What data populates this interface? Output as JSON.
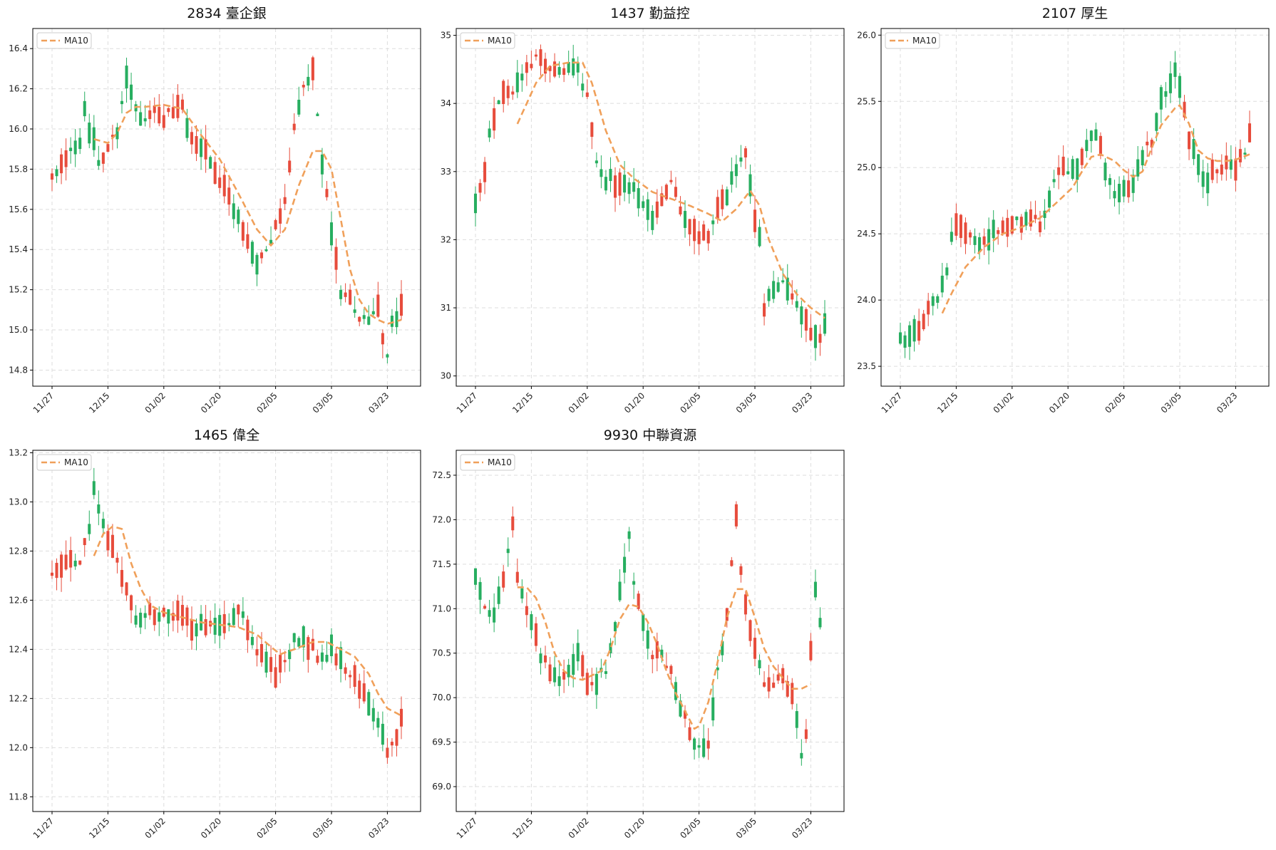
{
  "colors": {
    "up": "#e74c3c",
    "down": "#27ae60",
    "ma": "#f0a05a",
    "grid": "#dddddd",
    "frame": "#000000"
  },
  "x_tick_labels": [
    "11/27",
    "12/15",
    "01/02",
    "01/20",
    "02/05",
    "03/05",
    "03/23"
  ],
  "x_tick_index": [
    0,
    12,
    24,
    36,
    48,
    60,
    72
  ],
  "chart_data": [
    {
      "type": "candlestick",
      "title": "2834 臺企銀",
      "legend": {
        "label": "MA10",
        "position": "top-left"
      },
      "ylim": [
        14.72,
        16.5
      ],
      "yticks": [
        14.8,
        15.0,
        15.2,
        15.4,
        15.6,
        15.8,
        16.0,
        16.2,
        16.4
      ],
      "anchors": [
        [
          0,
          15.75
        ],
        [
          2,
          15.85
        ],
        [
          4,
          15.9
        ],
        [
          6,
          15.95
        ],
        [
          7,
          16.1
        ],
        [
          8,
          16.0
        ],
        [
          10,
          15.85
        ],
        [
          12,
          15.9
        ],
        [
          14,
          16.0
        ],
        [
          16,
          16.25
        ],
        [
          18,
          16.1
        ],
        [
          20,
          16.05
        ],
        [
          22,
          16.1
        ],
        [
          24,
          16.05
        ],
        [
          26,
          16.1
        ],
        [
          28,
          16.1
        ],
        [
          30,
          15.95
        ],
        [
          32,
          15.9
        ],
        [
          34,
          15.85
        ],
        [
          36,
          15.75
        ],
        [
          38,
          15.65
        ],
        [
          40,
          15.55
        ],
        [
          42,
          15.45
        ],
        [
          44,
          15.3
        ],
        [
          46,
          15.4
        ],
        [
          48,
          15.5
        ],
        [
          50,
          15.65
        ],
        [
          52,
          16.0
        ],
        [
          54,
          16.2
        ],
        [
          56,
          16.3
        ],
        [
          58,
          15.85
        ],
        [
          60,
          15.5
        ],
        [
          62,
          15.2
        ],
        [
          64,
          15.15
        ],
        [
          66,
          15.05
        ],
        [
          68,
          15.05
        ],
        [
          70,
          15.1
        ],
        [
          72,
          14.85
        ],
        [
          73,
          15.05
        ],
        [
          75,
          15.1
        ]
      ],
      "ma_anchors": [
        [
          9,
          15.95
        ],
        [
          12,
          15.93
        ],
        [
          14,
          15.98
        ],
        [
          16,
          16.08
        ],
        [
          18,
          16.11
        ],
        [
          20,
          16.11
        ],
        [
          24,
          16.12
        ],
        [
          28,
          16.1
        ],
        [
          32,
          15.97
        ],
        [
          36,
          15.85
        ],
        [
          40,
          15.68
        ],
        [
          44,
          15.5
        ],
        [
          47,
          15.42
        ],
        [
          50,
          15.5
        ],
        [
          53,
          15.72
        ],
        [
          56,
          15.89
        ],
        [
          58,
          15.89
        ],
        [
          60,
          15.8
        ],
        [
          62,
          15.55
        ],
        [
          64,
          15.3
        ],
        [
          66,
          15.15
        ],
        [
          68,
          15.08
        ],
        [
          70,
          15.05
        ],
        [
          72,
          15.03
        ],
        [
          75,
          15.05
        ]
      ]
    },
    {
      "type": "candlestick",
      "title": "1437 勤益控",
      "legend": {
        "label": "MA10",
        "position": "top-left"
      },
      "ylim": [
        29.85,
        35.1
      ],
      "yticks": [
        30,
        31,
        32,
        33,
        34,
        35
      ],
      "anchors": [
        [
          0,
          32.5
        ],
        [
          1,
          32.8
        ],
        [
          2,
          33.0
        ],
        [
          3,
          33.5
        ],
        [
          4,
          33.8
        ],
        [
          5,
          34.0
        ],
        [
          6,
          34.2
        ],
        [
          8,
          34.1
        ],
        [
          10,
          34.4
        ],
        [
          12,
          34.6
        ],
        [
          14,
          34.7
        ],
        [
          16,
          34.5
        ],
        [
          18,
          34.55
        ],
        [
          20,
          34.5
        ],
        [
          22,
          34.45
        ],
        [
          24,
          34.1
        ],
        [
          26,
          33.2
        ],
        [
          28,
          32.9
        ],
        [
          30,
          32.85
        ],
        [
          32,
          32.85
        ],
        [
          34,
          32.7
        ],
        [
          36,
          32.5
        ],
        [
          38,
          32.3
        ],
        [
          40,
          32.6
        ],
        [
          42,
          32.8
        ],
        [
          44,
          32.5
        ],
        [
          46,
          32.2
        ],
        [
          48,
          32.0
        ],
        [
          50,
          32.1
        ],
        [
          52,
          32.4
        ],
        [
          54,
          32.7
        ],
        [
          56,
          33.0
        ],
        [
          58,
          33.2
        ],
        [
          59,
          32.8
        ],
        [
          60,
          32.3
        ],
        [
          61,
          32.0
        ],
        [
          62,
          31.0
        ],
        [
          64,
          31.3
        ],
        [
          66,
          31.4
        ],
        [
          68,
          31.2
        ],
        [
          70,
          30.9
        ],
        [
          72,
          30.6
        ],
        [
          74,
          30.5
        ],
        [
          75,
          30.8
        ]
      ],
      "ma_anchors": [
        [
          9,
          33.7
        ],
        [
          11,
          34.0
        ],
        [
          13,
          34.3
        ],
        [
          16,
          34.55
        ],
        [
          20,
          34.6
        ],
        [
          23,
          34.6
        ],
        [
          25,
          34.3
        ],
        [
          28,
          33.6
        ],
        [
          31,
          33.1
        ],
        [
          34,
          32.9
        ],
        [
          38,
          32.7
        ],
        [
          42,
          32.6
        ],
        [
          46,
          32.5
        ],
        [
          50,
          32.38
        ],
        [
          53,
          32.27
        ],
        [
          56,
          32.45
        ],
        [
          59,
          32.72
        ],
        [
          61,
          32.5
        ],
        [
          63,
          32.0
        ],
        [
          66,
          31.5
        ],
        [
          69,
          31.2
        ],
        [
          72,
          31.0
        ],
        [
          75,
          30.85
        ]
      ]
    },
    {
      "type": "candlestick",
      "title": "2107 厚生",
      "legend": {
        "label": "MA10",
        "position": "top-left"
      },
      "ylim": [
        23.35,
        26.05
      ],
      "yticks": [
        23.5,
        24.0,
        24.5,
        25.0,
        25.5,
        26.0
      ],
      "anchors": [
        [
          0,
          23.7
        ],
        [
          2,
          23.7
        ],
        [
          4,
          23.8
        ],
        [
          6,
          23.95
        ],
        [
          8,
          24.0
        ],
        [
          10,
          24.2
        ],
        [
          11,
          24.5
        ],
        [
          12,
          24.55
        ],
        [
          14,
          24.5
        ],
        [
          16,
          24.45
        ],
        [
          18,
          24.45
        ],
        [
          20,
          24.5
        ],
        [
          22,
          24.55
        ],
        [
          24,
          24.6
        ],
        [
          26,
          24.6
        ],
        [
          28,
          24.65
        ],
        [
          30,
          24.55
        ],
        [
          32,
          24.8
        ],
        [
          34,
          24.95
        ],
        [
          36,
          25.0
        ],
        [
          38,
          24.95
        ],
        [
          40,
          25.2
        ],
        [
          42,
          25.25
        ],
        [
          44,
          25.0
        ],
        [
          46,
          24.8
        ],
        [
          48,
          24.85
        ],
        [
          50,
          24.85
        ],
        [
          52,
          25.1
        ],
        [
          54,
          25.2
        ],
        [
          56,
          25.5
        ],
        [
          58,
          25.6
        ],
        [
          59,
          25.75
        ],
        [
          60,
          25.6
        ],
        [
          62,
          25.2
        ],
        [
          64,
          25.0
        ],
        [
          66,
          24.9
        ],
        [
          68,
          25.0
        ],
        [
          70,
          25.0
        ],
        [
          72,
          25.0
        ],
        [
          74,
          25.1
        ],
        [
          75,
          25.25
        ]
      ],
      "ma_anchors": [
        [
          9,
          23.9
        ],
        [
          11,
          24.05
        ],
        [
          14,
          24.25
        ],
        [
          18,
          24.4
        ],
        [
          22,
          24.5
        ],
        [
          26,
          24.55
        ],
        [
          30,
          24.62
        ],
        [
          34,
          24.75
        ],
        [
          37,
          24.85
        ],
        [
          39,
          24.97
        ],
        [
          41,
          25.08
        ],
        [
          43,
          25.1
        ],
        [
          46,
          25.05
        ],
        [
          48,
          24.98
        ],
        [
          50,
          24.93
        ],
        [
          52,
          24.97
        ],
        [
          54,
          25.15
        ],
        [
          56,
          25.32
        ],
        [
          59,
          25.45
        ],
        [
          60,
          25.47
        ],
        [
          62,
          25.33
        ],
        [
          64,
          25.13
        ],
        [
          66,
          25.07
        ],
        [
          68,
          25.05
        ],
        [
          70,
          25.05
        ],
        [
          72,
          25.06
        ],
        [
          75,
          25.1
        ]
      ]
    },
    {
      "type": "candlestick",
      "title": "1465 偉全",
      "legend": {
        "label": "MA10",
        "position": "top-left"
      },
      "ylim": [
        11.74,
        13.21
      ],
      "yticks": [
        11.8,
        12.0,
        12.2,
        12.4,
        12.6,
        12.8,
        13.0,
        13.2
      ],
      "anchors": [
        [
          0,
          12.7
        ],
        [
          2,
          12.75
        ],
        [
          4,
          12.75
        ],
        [
          6,
          12.75
        ],
        [
          8,
          12.9
        ],
        [
          9,
          13.05
        ],
        [
          10,
          12.95
        ],
        [
          12,
          12.85
        ],
        [
          14,
          12.75
        ],
        [
          16,
          12.65
        ],
        [
          18,
          12.5
        ],
        [
          20,
          12.55
        ],
        [
          22,
          12.55
        ],
        [
          24,
          12.55
        ],
        [
          26,
          12.55
        ],
        [
          28,
          12.55
        ],
        [
          30,
          12.5
        ],
        [
          32,
          12.5
        ],
        [
          34,
          12.5
        ],
        [
          36,
          12.5
        ],
        [
          38,
          12.5
        ],
        [
          40,
          12.55
        ],
        [
          42,
          12.5
        ],
        [
          44,
          12.4
        ],
        [
          46,
          12.35
        ],
        [
          48,
          12.3
        ],
        [
          50,
          12.35
        ],
        [
          52,
          12.45
        ],
        [
          54,
          12.45
        ],
        [
          56,
          12.4
        ],
        [
          58,
          12.35
        ],
        [
          60,
          12.4
        ],
        [
          62,
          12.35
        ],
        [
          64,
          12.3
        ],
        [
          66,
          12.25
        ],
        [
          68,
          12.2
        ],
        [
          70,
          12.1
        ],
        [
          72,
          12.0
        ],
        [
          74,
          12.05
        ],
        [
          75,
          12.1
        ]
      ],
      "ma_anchors": [
        [
          9,
          12.78
        ],
        [
          11,
          12.87
        ],
        [
          13,
          12.9
        ],
        [
          15,
          12.89
        ],
        [
          17,
          12.75
        ],
        [
          19,
          12.65
        ],
        [
          21,
          12.58
        ],
        [
          24,
          12.55
        ],
        [
          28,
          12.53
        ],
        [
          32,
          12.51
        ],
        [
          36,
          12.5
        ],
        [
          40,
          12.49
        ],
        [
          44,
          12.46
        ],
        [
          47,
          12.41
        ],
        [
          49,
          12.38
        ],
        [
          52,
          12.4
        ],
        [
          56,
          12.43
        ],
        [
          59,
          12.43
        ],
        [
          62,
          12.4
        ],
        [
          65,
          12.37
        ],
        [
          68,
          12.3
        ],
        [
          70,
          12.22
        ],
        [
          72,
          12.16
        ],
        [
          75,
          12.13
        ]
      ]
    },
    {
      "type": "candlestick",
      "title": "9930 中聯資源",
      "legend": {
        "label": "MA10",
        "position": "top-left"
      },
      "ylim": [
        68.72,
        72.78
      ],
      "yticks": [
        69.0,
        69.5,
        70.0,
        70.5,
        71.0,
        71.5,
        72.0,
        72.5
      ],
      "anchors": [
        [
          0,
          71.35
        ],
        [
          1,
          71.2
        ],
        [
          2,
          71.0
        ],
        [
          4,
          70.9
        ],
        [
          6,
          71.3
        ],
        [
          7,
          71.6
        ],
        [
          8,
          71.9
        ],
        [
          9,
          71.35
        ],
        [
          10,
          71.2
        ],
        [
          12,
          70.8
        ],
        [
          14,
          70.5
        ],
        [
          16,
          70.3
        ],
        [
          18,
          70.2
        ],
        [
          20,
          70.3
        ],
        [
          22,
          70.5
        ],
        [
          24,
          70.1
        ],
        [
          26,
          70.2
        ],
        [
          28,
          70.3
        ],
        [
          30,
          70.8
        ],
        [
          32,
          71.5
        ],
        [
          33,
          71.8
        ],
        [
          34,
          71.3
        ],
        [
          36,
          70.8
        ],
        [
          38,
          70.5
        ],
        [
          40,
          70.5
        ],
        [
          42,
          70.3
        ],
        [
          44,
          69.9
        ],
        [
          46,
          69.6
        ],
        [
          48,
          69.4
        ],
        [
          50,
          69.5
        ],
        [
          52,
          70.3
        ],
        [
          54,
          70.9
        ],
        [
          55,
          71.5
        ],
        [
          56,
          72.1
        ],
        [
          57,
          71.4
        ],
        [
          58,
          71.0
        ],
        [
          60,
          70.6
        ],
        [
          62,
          70.2
        ],
        [
          64,
          70.1
        ],
        [
          66,
          70.3
        ],
        [
          68,
          70.0
        ],
        [
          70,
          69.4
        ],
        [
          71,
          69.6
        ],
        [
          72,
          70.5
        ],
        [
          73,
          71.2
        ],
        [
          74,
          70.9
        ]
      ],
      "ma_anchors": [
        [
          9,
          71.24
        ],
        [
          11,
          71.24
        ],
        [
          13,
          71.12
        ],
        [
          15,
          70.85
        ],
        [
          17,
          70.5
        ],
        [
          19,
          70.3
        ],
        [
          21,
          70.22
        ],
        [
          23,
          70.2
        ],
        [
          25,
          70.25
        ],
        [
          27,
          70.3
        ],
        [
          29,
          70.55
        ],
        [
          31,
          70.88
        ],
        [
          33,
          71.05
        ],
        [
          35,
          71.02
        ],
        [
          37,
          70.85
        ],
        [
          39,
          70.6
        ],
        [
          41,
          70.3
        ],
        [
          43,
          70.05
        ],
        [
          45,
          69.85
        ],
        [
          47,
          69.65
        ],
        [
          48,
          69.68
        ],
        [
          50,
          69.95
        ],
        [
          52,
          70.4
        ],
        [
          54,
          70.9
        ],
        [
          56,
          71.22
        ],
        [
          58,
          71.22
        ],
        [
          60,
          70.9
        ],
        [
          62,
          70.55
        ],
        [
          64,
          70.35
        ],
        [
          66,
          70.22
        ],
        [
          68,
          70.1
        ],
        [
          70,
          70.1
        ],
        [
          72,
          70.15
        ]
      ]
    }
  ]
}
